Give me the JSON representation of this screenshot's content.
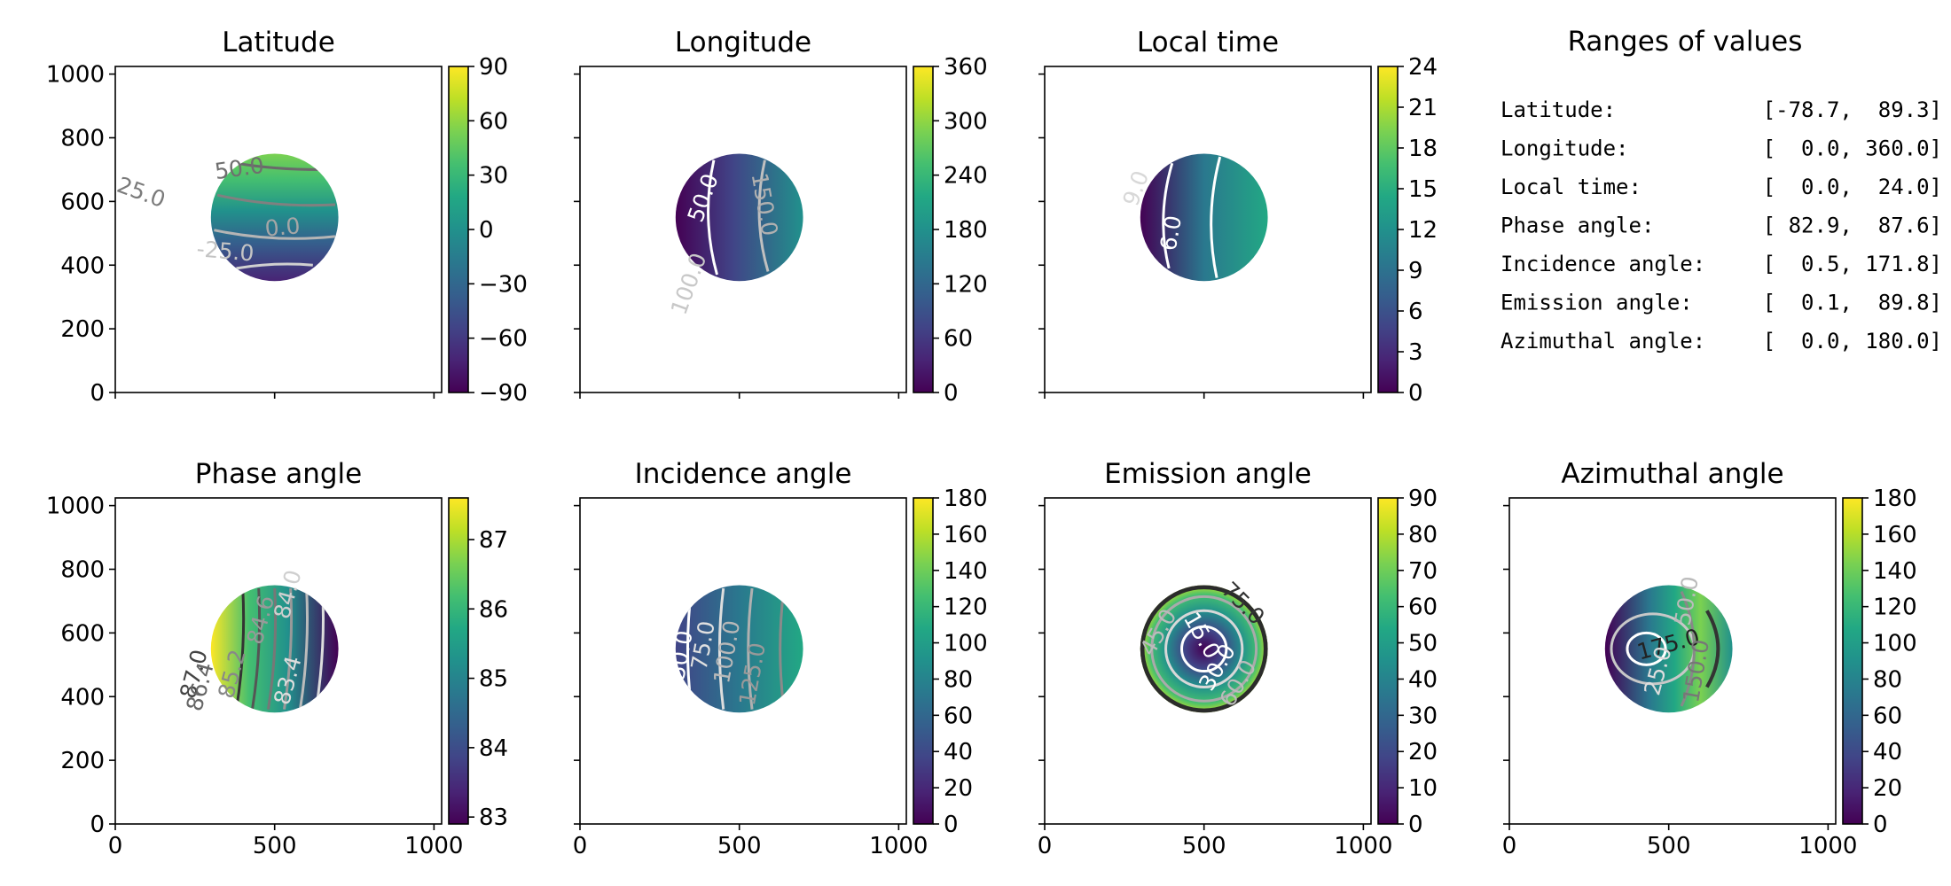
{
  "chart_data": [
    {
      "type": "heatmap",
      "title": "Latitude",
      "field": "latitude",
      "xlim": [
        0,
        1024
      ],
      "ylim": [
        0,
        1024
      ],
      "xticks": [
        0,
        500,
        1000
      ],
      "yticks": [
        0,
        200,
        400,
        600,
        800,
        1000
      ],
      "show_xticklabels": false,
      "show_yticklabels": true,
      "clim": [
        -90,
        90
      ],
      "cbar_ticks": [
        "−90",
        "−60",
        "−30",
        "0",
        "30",
        "60",
        "90"
      ],
      "disk": {
        "cx": 500,
        "cy": 550,
        "r": 200
      },
      "contour_labels": [
        {
          "text": "50.0",
          "x": 390,
          "y": 700,
          "rot": -8,
          "color": "#6f6f6f"
        },
        {
          "text": "25.0",
          "x": 80,
          "y": 625,
          "rot": 20,
          "color": "#7b7b7b"
        },
        {
          "text": "0.0",
          "x": 525,
          "y": 515,
          "rot": -5,
          "color": "#a6a6a6"
        },
        {
          "text": "-25.0",
          "x": 345,
          "y": 440,
          "rot": 5,
          "color": "#c4c4c4"
        }
      ]
    },
    {
      "type": "heatmap",
      "title": "Longitude",
      "field": "longitude",
      "xlim": [
        0,
        1024
      ],
      "ylim": [
        0,
        1024
      ],
      "xticks": [
        0,
        500,
        1000
      ],
      "yticks": [
        0,
        200,
        400,
        600,
        800,
        1000
      ],
      "show_xticklabels": false,
      "show_yticklabels": false,
      "clim": [
        0,
        360
      ],
      "cbar_ticks": [
        "0",
        "60",
        "120",
        "180",
        "240",
        "300",
        "360"
      ],
      "disk": {
        "cx": 500,
        "cy": 550,
        "r": 200
      },
      "contour_labels": [
        {
          "text": "50.0",
          "x": 390,
          "y": 610,
          "rot": -70,
          "color": "#ffffff"
        },
        {
          "text": "150.0",
          "x": 575,
          "y": 590,
          "rot": 80,
          "color": "#b0b0b0"
        },
        {
          "text": "100.0",
          "x": 345,
          "y": 340,
          "rot": -70,
          "color": "#c8c8c8"
        }
      ]
    },
    {
      "type": "heatmap",
      "title": "Local time",
      "field": "localtime",
      "xlim": [
        0,
        1024
      ],
      "ylim": [
        0,
        1024
      ],
      "xticks": [
        0,
        500,
        1000
      ],
      "yticks": [
        0,
        200,
        400,
        600,
        800,
        1000
      ],
      "show_xticklabels": false,
      "show_yticklabels": false,
      "clim": [
        0,
        24
      ],
      "cbar_ticks": [
        "0",
        "3",
        "6",
        "9",
        "12",
        "15",
        "18",
        "21",
        "24"
      ],
      "disk": {
        "cx": 500,
        "cy": 550,
        "r": 200
      },
      "contour_labels": [
        {
          "text": "9.0",
          "x": 290,
          "y": 640,
          "rot": -70,
          "color": "#d8d8d8"
        },
        {
          "text": "6.0",
          "x": 400,
          "y": 500,
          "rot": -80,
          "color": "#ffffff"
        }
      ]
    },
    {
      "type": "heatmap",
      "title": "Phase angle",
      "field": "phase",
      "xlim": [
        0,
        1024
      ],
      "ylim": [
        0,
        1024
      ],
      "xticks": [
        0,
        500,
        1000
      ],
      "yticks": [
        0,
        200,
        400,
        600,
        800,
        1000
      ],
      "show_xticklabels": true,
      "show_yticklabels": true,
      "clim": [
        82.9,
        87.6
      ],
      "cbar_ticks": [
        "83",
        "84",
        "85",
        "86",
        "87"
      ],
      "cbar_tick_values": [
        83,
        84,
        85,
        86,
        87
      ],
      "disk": {
        "cx": 500,
        "cy": 550,
        "r": 200
      },
      "contour_labels": [
        {
          "text": "87.0",
          "x": 250,
          "y": 470,
          "rot": -75,
          "color": "#444444"
        },
        {
          "text": "86.4",
          "x": 270,
          "y": 430,
          "rot": -75,
          "color": "#666666"
        },
        {
          "text": "85.2",
          "x": 370,
          "y": 470,
          "rot": -75,
          "color": "#888888"
        },
        {
          "text": "84.6",
          "x": 460,
          "y": 640,
          "rot": -75,
          "color": "#999999"
        },
        {
          "text": "84.0",
          "x": 545,
          "y": 720,
          "rot": -75,
          "color": "#cfcfcf"
        },
        {
          "text": "83.4",
          "x": 545,
          "y": 450,
          "rot": -75,
          "color": "#dddddd"
        }
      ]
    },
    {
      "type": "heatmap",
      "title": "Incidence angle",
      "field": "incidence",
      "xlim": [
        0,
        1024
      ],
      "ylim": [
        0,
        1024
      ],
      "xticks": [
        0,
        500,
        1000
      ],
      "yticks": [
        0,
        200,
        400,
        600,
        800,
        1000
      ],
      "show_xticklabels": true,
      "show_yticklabels": false,
      "clim": [
        0,
        180
      ],
      "cbar_ticks": [
        "0",
        "20",
        "40",
        "60",
        "80",
        "100",
        "120",
        "140",
        "160",
        "180"
      ],
      "disk": {
        "cx": 500,
        "cy": 550,
        "r": 200
      },
      "contour_labels": [
        {
          "text": "50.0",
          "x": 320,
          "y": 530,
          "rot": -80,
          "color": "#ffffff"
        },
        {
          "text": "75.0",
          "x": 390,
          "y": 560,
          "rot": -80,
          "color": "#e0e0e0"
        },
        {
          "text": "100.0",
          "x": 465,
          "y": 540,
          "rot": -80,
          "color": "#b8b8b8"
        },
        {
          "text": "125.0",
          "x": 545,
          "y": 470,
          "rot": -80,
          "color": "#999999"
        }
      ]
    },
    {
      "type": "heatmap",
      "title": "Emission angle",
      "field": "emission",
      "xlim": [
        0,
        1024
      ],
      "ylim": [
        0,
        1024
      ],
      "xticks": [
        0,
        500,
        1000
      ],
      "yticks": [
        0,
        200,
        400,
        600,
        800,
        1000
      ],
      "show_xticklabels": true,
      "show_yticklabels": false,
      "clim": [
        0,
        90
      ],
      "cbar_ticks": [
        "0",
        "10",
        "20",
        "30",
        "40",
        "50",
        "60",
        "70",
        "80",
        "90"
      ],
      "disk": {
        "cx": 500,
        "cy": 550,
        "r": 200
      },
      "contour_labels": [
        {
          "text": "75.0",
          "x": 620,
          "y": 690,
          "rot": 45,
          "color": "#333333"
        },
        {
          "text": "45.0",
          "x": 360,
          "y": 600,
          "rot": -60,
          "color": "#bbbbbb"
        },
        {
          "text": "15.0",
          "x": 490,
          "y": 590,
          "rot": 60,
          "color": "#ffffff"
        },
        {
          "text": "30.0",
          "x": 545,
          "y": 490,
          "rot": -60,
          "color": "#ffffff"
        },
        {
          "text": "60.0",
          "x": 610,
          "y": 440,
          "rot": -60,
          "color": "#bbbbbb"
        }
      ]
    },
    {
      "type": "heatmap",
      "title": "Azimuthal angle",
      "field": "azimuth",
      "xlim": [
        0,
        1024
      ],
      "ylim": [
        0,
        1024
      ],
      "xticks": [
        0,
        500,
        1000
      ],
      "yticks": [
        0,
        200,
        400,
        600,
        800,
        1000
      ],
      "show_xticklabels": true,
      "show_yticklabels": false,
      "clim": [
        0,
        180
      ],
      "cbar_ticks": [
        "0",
        "20",
        "40",
        "60",
        "80",
        "100",
        "120",
        "140",
        "160",
        "180"
      ],
      "disk": {
        "cx": 500,
        "cy": 550,
        "r": 200
      },
      "contour_labels": [
        {
          "text": "175.0",
          "x": 500,
          "y": 560,
          "rot": -15,
          "color": "#222222"
        },
        {
          "text": "25.0",
          "x": 470,
          "y": 480,
          "rot": -75,
          "color": "#dddddd"
        },
        {
          "text": "50.0",
          "x": 560,
          "y": 700,
          "rot": -80,
          "color": "#bbbbbb"
        },
        {
          "text": "150.0",
          "x": 590,
          "y": 480,
          "rot": -80,
          "color": "#777777"
        }
      ]
    }
  ],
  "ranges": {
    "title": "Ranges of values",
    "rows": [
      {
        "label": "Latitude:",
        "range": "[-78.7,  89.3]"
      },
      {
        "label": "Longitude:",
        "range": "[  0.0, 360.0]"
      },
      {
        "label": "Local time:",
        "range": "[  0.0,  24.0]"
      },
      {
        "label": "Phase angle:",
        "range": "[ 82.9,  87.6]"
      },
      {
        "label": "Incidence angle:",
        "range": "[  0.5, 171.8]"
      },
      {
        "label": "Emission angle:",
        "range": "[  0.1,  89.8]"
      },
      {
        "label": "Azimuthal angle:",
        "range": "[  0.0, 180.0]"
      }
    ]
  },
  "colormap": "viridis"
}
